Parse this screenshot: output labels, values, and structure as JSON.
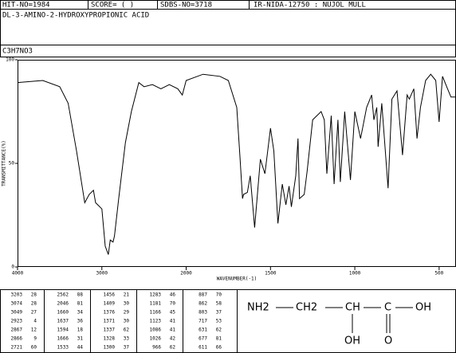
{
  "header": {
    "hit": "HIT-NO=1984",
    "score": "SCORE=  (  )",
    "sdbs": "SDBS-NO=3718",
    "method": "IR-NIDA-12750 : NUJOL MULL",
    "name": "DL-3-AMINO-2-HYDROXYPROPIONIC ACID",
    "formula": "C3H7NO3"
  },
  "chart_data": {
    "type": "line",
    "xlabel": "WAVENUMBER(-1)",
    "ylabel": "TRANSMITTANCE(%)",
    "xlim": [
      4000,
      400
    ],
    "xscale": {
      "type": "piecewise",
      "break": 2000
    },
    "xticks": [
      4000,
      3000,
      2000,
      1500,
      1000,
      500
    ],
    "ylim": [
      0,
      100
    ],
    "yticks": [
      0,
      50,
      100
    ],
    "color": "#000000",
    "x": [
      4000,
      3700,
      3500,
      3400,
      3300,
      3203,
      3150,
      3100,
      3074,
      3049,
      3000,
      2960,
      2923,
      2900,
      2867,
      2850,
      2800,
      2721,
      2650,
      2562,
      2500,
      2400,
      2300,
      2200,
      2100,
      2046,
      2000,
      1900,
      1800,
      1750,
      1700,
      1680,
      1666,
      1660,
      1637,
      1620,
      1594,
      1560,
      1533,
      1500,
      1480,
      1456,
      1430,
      1409,
      1390,
      1376,
      1350,
      1337,
      1328,
      1300,
      1283,
      1250,
      1200,
      1181,
      1166,
      1140,
      1123,
      1100,
      1086,
      1060,
      1026,
      1000,
      966,
      930,
      900,
      887,
      870,
      862,
      840,
      803,
      780,
      750,
      717,
      690,
      677,
      650,
      631,
      611,
      580,
      550,
      520,
      500,
      480,
      450,
      430,
      400
    ],
    "values": [
      89,
      90,
      87,
      79,
      56,
      31,
      35,
      37,
      31,
      30,
      28,
      10,
      6,
      13,
      12,
      15,
      33,
      60,
      75,
      89,
      87,
      88,
      86,
      88,
      86,
      83,
      90,
      93,
      92,
      90,
      77,
      52,
      33,
      35,
      36,
      44,
      19,
      52,
      45,
      67,
      56,
      21,
      40,
      30,
      39,
      29,
      44,
      62,
      33,
      35,
      46,
      71,
      75,
      71,
      45,
      73,
      40,
      71,
      41,
      75,
      42,
      75,
      62,
      77,
      83,
      71,
      77,
      58,
      79,
      38,
      81,
      85,
      54,
      83,
      81,
      86,
      62,
      77,
      90,
      93,
      90,
      70,
      92,
      86,
      82,
      82
    ]
  },
  "peak_table": [
    [
      3203,
      28
    ],
    [
      3074,
      28
    ],
    [
      3049,
      27
    ],
    [
      2923,
      4
    ],
    [
      2867,
      12
    ],
    [
      2866,
      9
    ],
    [
      2721,
      60
    ],
    [
      2562,
      88
    ],
    [
      2046,
      81
    ],
    [
      1660,
      34
    ],
    [
      1637,
      36
    ],
    [
      1594,
      18
    ],
    [
      1666,
      31
    ],
    [
      1533,
      44
    ],
    [
      1456,
      21
    ],
    [
      1409,
      30
    ],
    [
      1376,
      29
    ],
    [
      1371,
      30
    ],
    [
      1337,
      62
    ],
    [
      1328,
      33
    ],
    [
      1300,
      37
    ],
    [
      1283,
      46
    ],
    [
      1181,
      70
    ],
    [
      1166,
      45
    ],
    [
      1123,
      41
    ],
    [
      1086,
      41
    ],
    [
      1026,
      42
    ],
    [
      966,
      62
    ],
    [
      887,
      70
    ],
    [
      862,
      58
    ],
    [
      803,
      37
    ],
    [
      717,
      53
    ],
    [
      631,
      62
    ],
    [
      677,
      81
    ],
    [
      611,
      66
    ]
  ],
  "structure": {
    "nh2": "NH2",
    "ch2": "CH2",
    "ch": "CH",
    "c": "C",
    "oh": "OH",
    "oh2": "OH",
    "o": "O"
  }
}
